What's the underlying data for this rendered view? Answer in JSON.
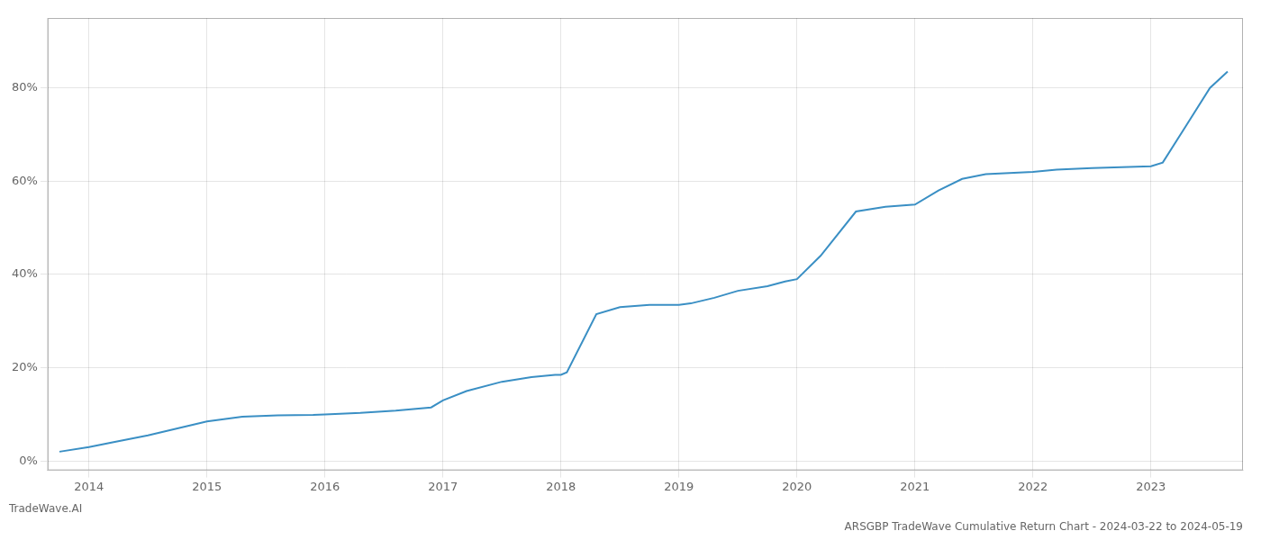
{
  "chart_data": {
    "type": "line",
    "title": "ARSGBP TradeWave Cumulative Return Chart - 2024-03-22 to 2024-05-19",
    "annotations": [
      "TradeWave.AI"
    ],
    "x": [
      2013.75,
      2014.0,
      2014.2,
      2014.5,
      2014.75,
      2015.0,
      2015.3,
      2015.6,
      2015.9,
      2016.0,
      2016.3,
      2016.6,
      2016.9,
      2017.0,
      2017.2,
      2017.5,
      2017.75,
      2017.95,
      2018.0,
      2018.05,
      2018.3,
      2018.5,
      2018.75,
      2019.0,
      2019.1,
      2019.3,
      2019.5,
      2019.75,
      2019.9,
      2020.0,
      2020.2,
      2020.5,
      2020.75,
      2021.0,
      2021.2,
      2021.4,
      2021.6,
      2022.0,
      2022.2,
      2022.5,
      2022.75,
      2023.0,
      2023.1,
      2023.3,
      2023.5,
      2023.65
    ],
    "values": [
      2.0,
      3.0,
      4.0,
      5.5,
      7.0,
      8.5,
      9.5,
      9.8,
      9.9,
      10.0,
      10.3,
      10.8,
      11.5,
      13.0,
      15.0,
      17.0,
      18.0,
      18.5,
      18.5,
      19.0,
      31.5,
      33.0,
      33.5,
      33.5,
      33.8,
      35.0,
      36.5,
      37.5,
      38.5,
      39.0,
      44.0,
      53.5,
      54.5,
      55.0,
      58.0,
      60.5,
      61.5,
      62.0,
      62.5,
      62.8,
      63.0,
      63.2,
      64.0,
      72.0,
      80.0,
      83.5
    ],
    "color": "#3a8fc4",
    "xlim": [
      2013.65,
      2023.78
    ],
    "xticks": [
      2014,
      2015,
      2016,
      2017,
      2018,
      2019,
      2020,
      2021,
      2022,
      2023
    ],
    "ylim": [
      -2,
      95
    ],
    "yticks": [
      {
        "value": 0,
        "label": "0%"
      },
      {
        "value": 20,
        "label": "20%"
      },
      {
        "value": 40,
        "label": "40%"
      },
      {
        "value": 60,
        "label": "60%"
      },
      {
        "value": 80,
        "label": "80%"
      }
    ],
    "grid": true
  }
}
